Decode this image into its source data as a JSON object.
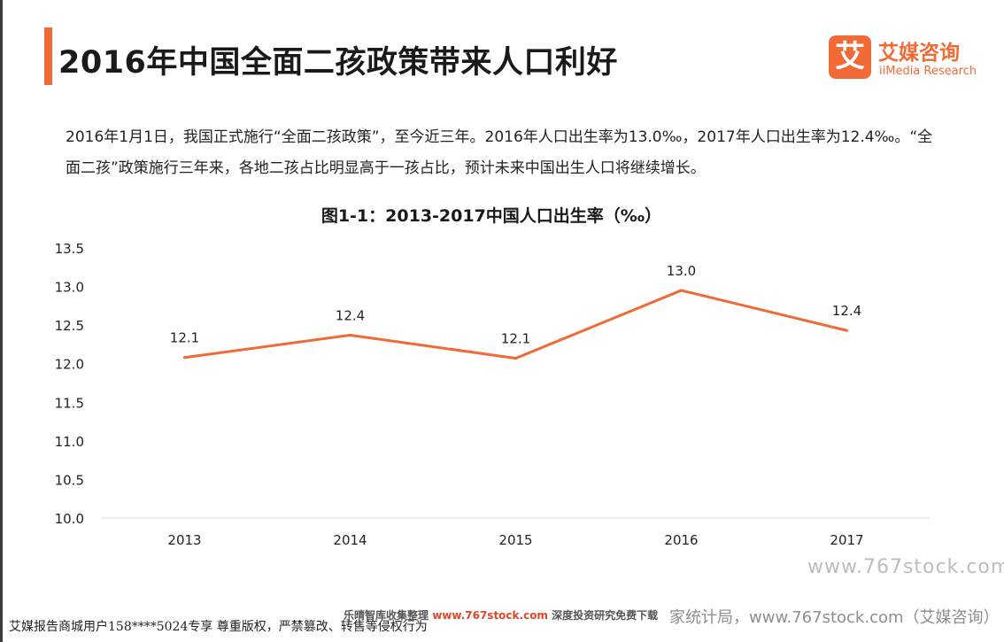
{
  "page": {
    "title": "2016年中国全面二孩政策带来人口利好",
    "intro": "2016年1月1日，我国正式施行“全面二孩政策”，至今近三年。2016年人口出生率为13.0‰，2017年人口出生率为12.4‰。“全面二孩”政策施行三年来，各地二孩占比明显高于一孩占比，预计未来中国出生人口将继续增长。"
  },
  "logo": {
    "mark": "艾",
    "name_cn": "艾媒咨询",
    "name_en": "iiMedia Research"
  },
  "chart_data": {
    "type": "line",
    "title": "图1-1：2013-2017中国人口出生率（‰）",
    "categories": [
      "2013",
      "2014",
      "2015",
      "2016",
      "2017"
    ],
    "series": [
      {
        "values": [
          12.08,
          12.37,
          12.07,
          12.95,
          12.43
        ],
        "labels": [
          "12.1",
          "12.4",
          "12.1",
          "13.0",
          "12.4"
        ]
      }
    ],
    "ylim": [
      10.0,
      13.5
    ],
    "yticks": [
      10.0,
      10.5,
      11.0,
      11.5,
      12.0,
      12.5,
      13.0,
      13.5
    ],
    "ytick_labels": [
      "10.0",
      "10.5",
      "11.0",
      "11.5",
      "12.0",
      "12.5",
      "13.0",
      "13.5"
    ],
    "xlabel": "",
    "ylabel": "",
    "grid": false,
    "line_color": "#ef6a35"
  },
  "watermarks": {
    "site": "www.767stock.com",
    "footer_user": "艾媒报告商城用户158****5024专享 尊重版权，严禁篡改、转售等侵权行为",
    "footer_promo_prefix": "乐晴智库收集整理",
    "footer_promo_url": "www.767stock.com",
    "footer_promo_suffix": "深度投资研究免费下载",
    "footer_overlay": "家统计局，www.767stock.com（艾媒咨询）"
  }
}
